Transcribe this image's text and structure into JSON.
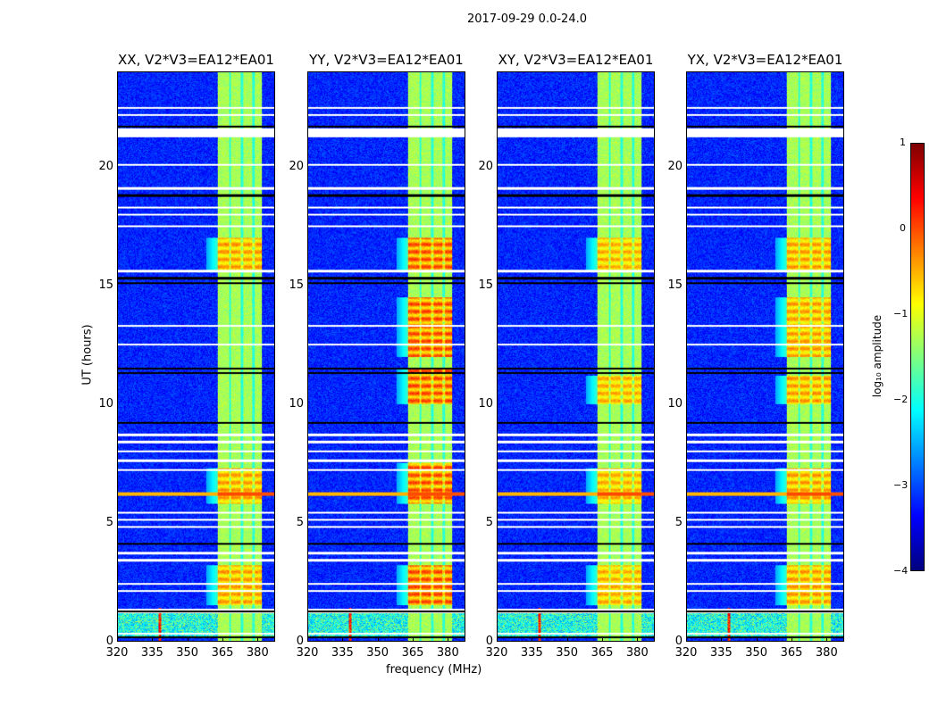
{
  "chart_data": {
    "type": "heatmap",
    "suptitle": "2017-09-29 0.0-24.0",
    "xlabel": "frequency (MHz)",
    "ylabel": "UT (hours)",
    "xlim": [
      320,
      387.5
    ],
    "ylim": [
      0,
      24
    ],
    "xticks": [
      "320",
      "335",
      "350",
      "365",
      "380"
    ],
    "xtick_values": [
      320,
      335,
      350,
      365,
      380
    ],
    "yticks": [
      "0",
      "5",
      "10",
      "15",
      "20"
    ],
    "ytick_values": [
      0,
      5,
      10,
      15,
      20
    ],
    "panels": [
      {
        "title": "XX, V2*V3=EA12*EA01",
        "strong_periods": [
          [
            1.5,
            3.2
          ],
          [
            5.8,
            7.3
          ],
          [
            15.6,
            17.0
          ]
        ],
        "strength": -0.3
      },
      {
        "title": "YY, V2*V3=EA12*EA01",
        "strong_periods": [
          [
            1.5,
            3.2
          ],
          [
            5.8,
            7.5
          ],
          [
            10.0,
            11.5
          ],
          [
            12.0,
            14.5
          ],
          [
            15.6,
            17.0
          ]
        ],
        "strength": 0.1
      },
      {
        "title": "XY, V2*V3=EA12*EA01",
        "strong_periods": [
          [
            1.5,
            3.2
          ],
          [
            5.8,
            7.3
          ],
          [
            10.0,
            11.2
          ],
          [
            15.6,
            17.0
          ]
        ],
        "strength": -0.4
      },
      {
        "title": "YX, V2*V3=EA12*EA01",
        "strong_periods": [
          [
            1.5,
            3.2
          ],
          [
            5.8,
            7.3
          ],
          [
            10.0,
            11.2
          ],
          [
            12.0,
            14.5
          ],
          [
            15.6,
            17.0
          ]
        ],
        "strength": -0.3
      }
    ],
    "band_MHz": [
      363,
      382
    ],
    "background_level": -3.2,
    "band_level": -1.3,
    "rfi_line_hours": 6.2,
    "rfi_spike_MHz": 338,
    "flagged_white_hours": [
      0.3,
      1.2,
      1.3,
      2.1,
      2.4,
      3.4,
      3.7,
      4.8,
      5.1,
      5.4,
      7.2,
      7.6,
      8.0,
      8.4,
      8.7,
      12.5,
      13.3,
      15.6,
      17.5,
      18.0,
      18.3,
      19.1,
      20.1,
      21.3,
      21.5,
      21.6,
      22.2,
      22.5
    ],
    "flagged_black_hours": [
      0.15,
      1.25,
      4.1,
      9.2,
      11.3,
      11.5,
      15.1,
      15.3,
      18.8,
      21.7
    ],
    "colorbar": {
      "label": "log₁₀ amplitude",
      "range": [
        -4,
        1
      ],
      "ticks": [
        "1",
        "0",
        "−1",
        "−2",
        "−3",
        "−4"
      ],
      "tick_values": [
        1,
        0,
        -1,
        -2,
        -3,
        -4
      ],
      "colormap": "jet"
    }
  }
}
